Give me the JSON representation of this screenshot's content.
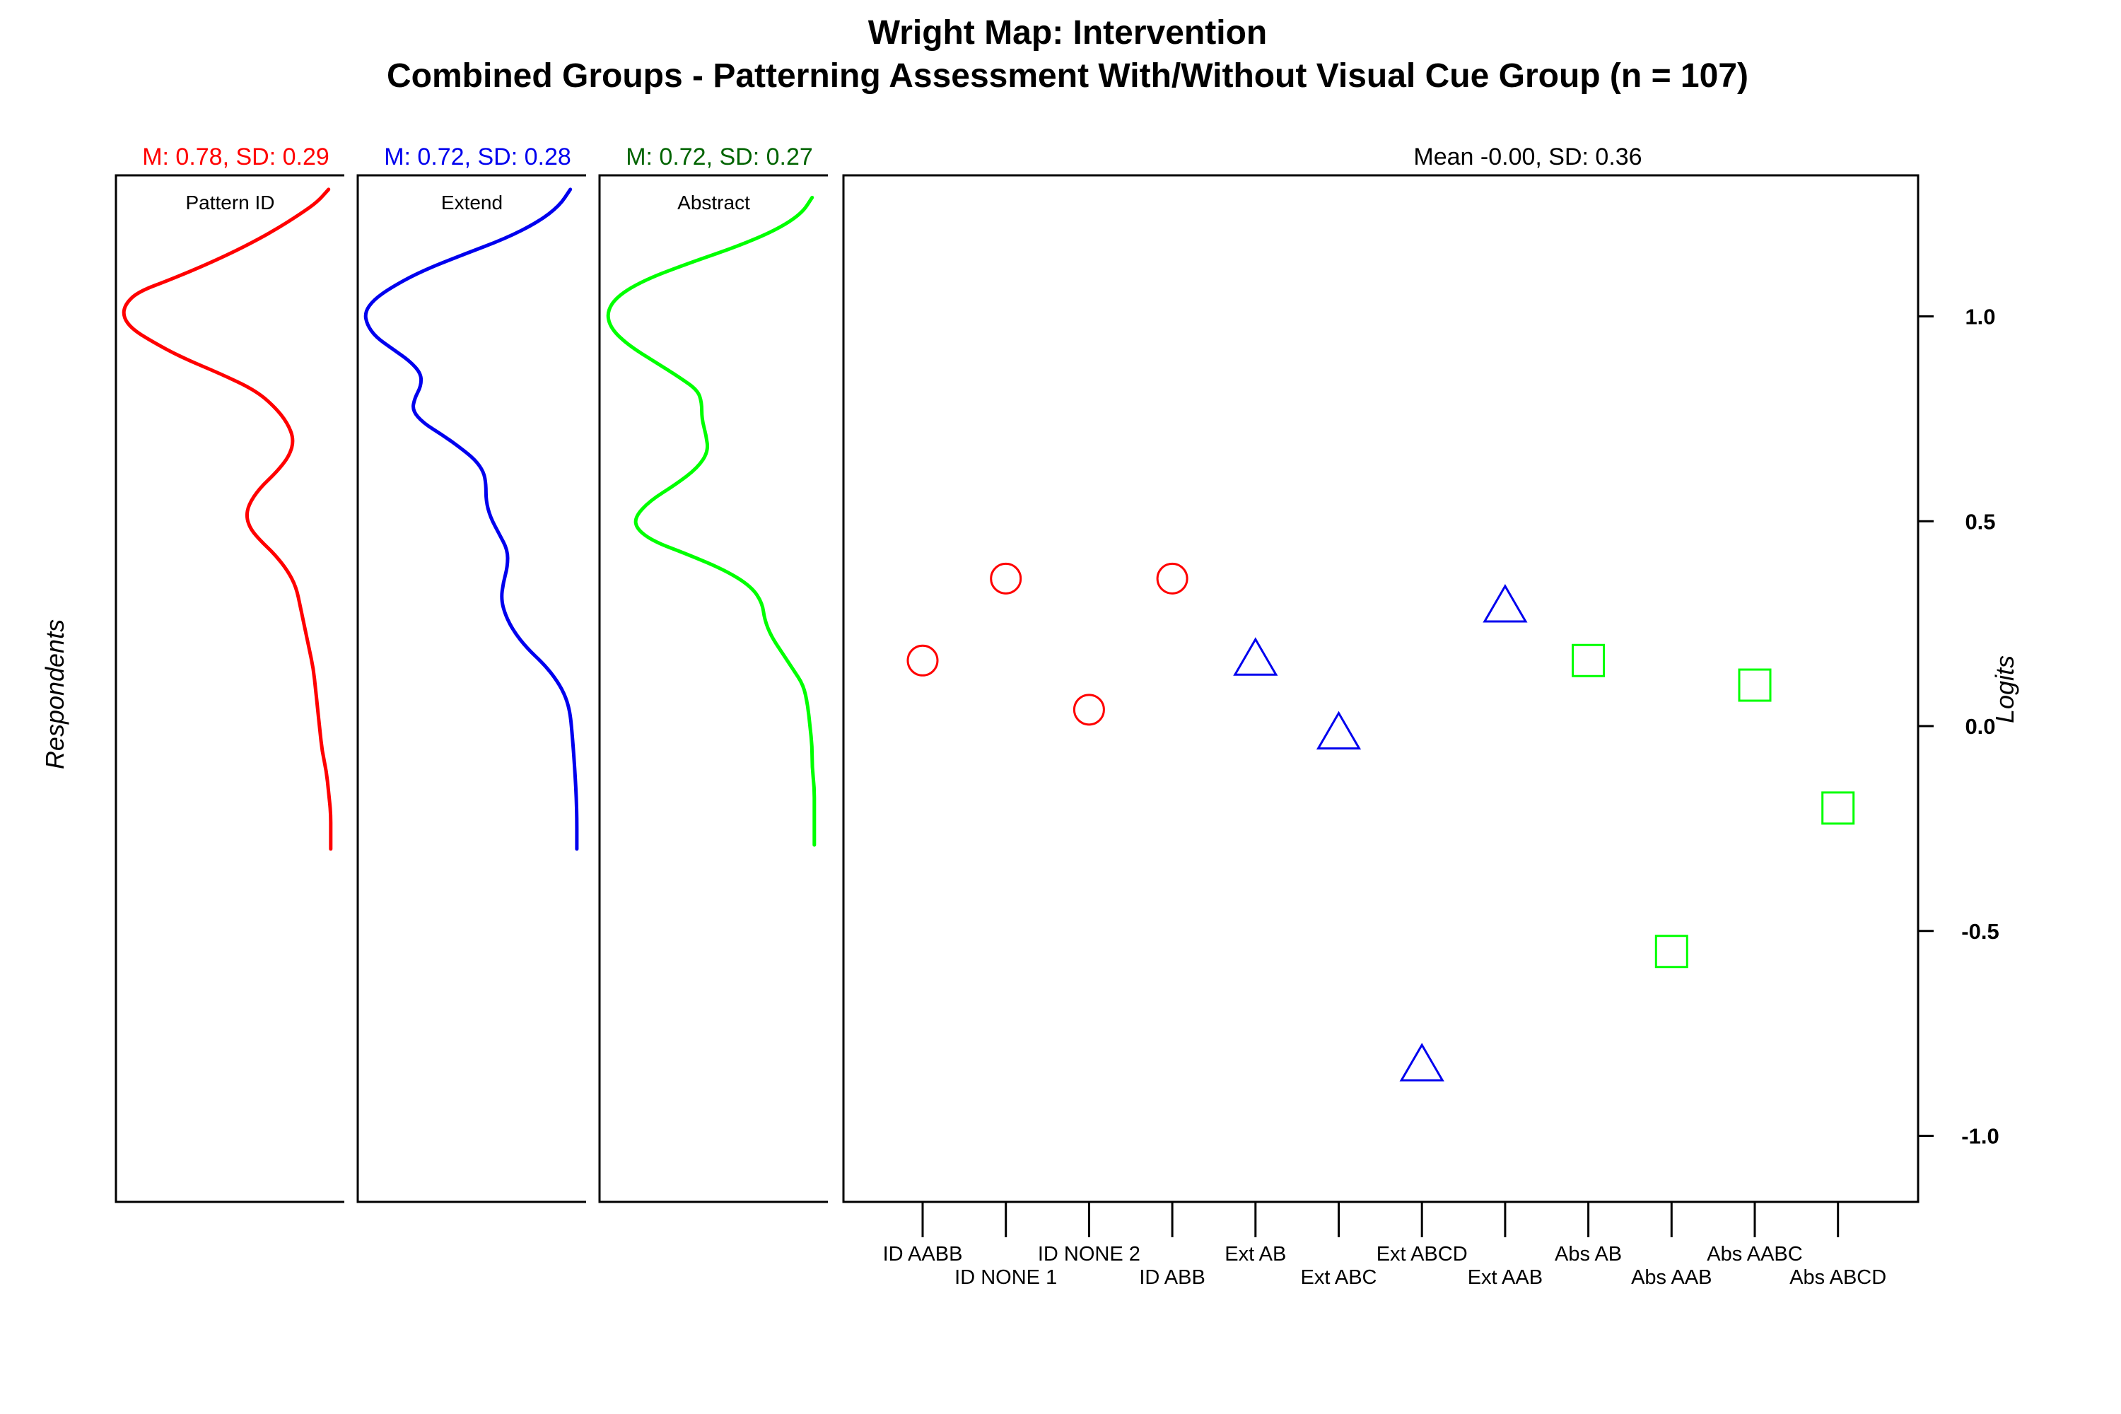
{
  "chart_data": {
    "type": "scatter",
    "title": "Wright Map: Intervention",
    "subtitle": "Combined Groups - Patterning Assessment With/Without Visual Cue Group (n = 107)",
    "ylabel": "Logits",
    "respondents_label": "Respondents",
    "ylim": [
      -1.17,
      1.35
    ],
    "yticks": [
      "1.0",
      "0.5",
      "0.0",
      "-0.5",
      "-1.0"
    ],
    "ytick_values": [
      1.0,
      0.5,
      0.0,
      -0.5,
      -1.0
    ],
    "main_stat": "Mean -0.00, SD: 0.36",
    "grid": false,
    "items": [
      {
        "label": "ID AABB",
        "y": 0.16,
        "group": "Pattern ID",
        "marker": "circle",
        "color": "#ff0000"
      },
      {
        "label": "ID NONE 1",
        "y": 0.36,
        "group": "Pattern ID",
        "marker": "circle",
        "color": "#ff0000"
      },
      {
        "label": "ID NONE 2",
        "y": 0.04,
        "group": "Pattern ID",
        "marker": "circle",
        "color": "#ff0000"
      },
      {
        "label": "ID ABB",
        "y": 0.36,
        "group": "Pattern ID",
        "marker": "circle",
        "color": "#ff0000"
      },
      {
        "label": "Ext AB",
        "y": 0.16,
        "group": "Extend",
        "marker": "triangle",
        "color": "#0000ee"
      },
      {
        "label": "Ext ABC",
        "y": -0.02,
        "group": "Extend",
        "marker": "triangle",
        "color": "#0000ee"
      },
      {
        "label": "Ext ABCD",
        "y": -0.83,
        "group": "Extend",
        "marker": "triangle",
        "color": "#0000ee"
      },
      {
        "label": "Ext AAB",
        "y": 0.29,
        "group": "Extend",
        "marker": "triangle",
        "color": "#0000ee"
      },
      {
        "label": "Abs AB",
        "y": 0.16,
        "group": "Abstract",
        "marker": "square",
        "color": "#00ff00"
      },
      {
        "label": "Abs AAB",
        "y": -0.55,
        "group": "Abstract",
        "marker": "square",
        "color": "#00ff00"
      },
      {
        "label": "Abs AABC",
        "y": 0.1,
        "group": "Abstract",
        "marker": "square",
        "color": "#00ff00"
      },
      {
        "label": "Abs ABCD",
        "y": -0.2,
        "group": "Abstract",
        "marker": "square",
        "color": "#00ff00"
      }
    ],
    "panels": [
      {
        "name": "Pattern ID",
        "stat": "M: 0.78, SD: 0.29",
        "stat_color": "#ff0000",
        "line_color": "#ff0000",
        "density": [
          [
            1.31,
            0.05
          ],
          [
            1.28,
            0.1
          ],
          [
            1.25,
            0.18
          ],
          [
            1.21,
            0.3
          ],
          [
            1.17,
            0.44
          ],
          [
            1.13,
            0.6
          ],
          [
            1.09,
            0.78
          ],
          [
            1.06,
            0.93
          ],
          [
            1.03,
            0.99
          ],
          [
            1.0,
            1.0
          ],
          [
            0.97,
            0.96
          ],
          [
            0.94,
            0.87
          ],
          [
            0.9,
            0.73
          ],
          [
            0.86,
            0.55
          ],
          [
            0.82,
            0.39
          ],
          [
            0.78,
            0.3
          ],
          [
            0.74,
            0.24
          ],
          [
            0.7,
            0.21
          ],
          [
            0.66,
            0.23
          ],
          [
            0.62,
            0.29
          ],
          [
            0.58,
            0.37
          ],
          [
            0.54,
            0.42
          ],
          [
            0.51,
            0.43
          ],
          [
            0.48,
            0.41
          ],
          [
            0.45,
            0.36
          ],
          [
            0.42,
            0.3
          ],
          [
            0.38,
            0.24
          ],
          [
            0.34,
            0.2
          ],
          [
            0.29,
            0.18
          ],
          [
            0.24,
            0.16
          ],
          [
            0.19,
            0.14
          ],
          [
            0.14,
            0.12
          ],
          [
            0.09,
            0.11
          ],
          [
            0.04,
            0.1
          ],
          [
            -0.01,
            0.09
          ],
          [
            -0.06,
            0.08
          ],
          [
            -0.11,
            0.06
          ],
          [
            -0.16,
            0.05
          ],
          [
            -0.21,
            0.04
          ],
          [
            -0.26,
            0.04
          ],
          [
            -0.3,
            0.04
          ]
        ]
      },
      {
        "name": "Extend",
        "stat": "M: 0.72, SD: 0.28",
        "stat_color": "#0000ee",
        "line_color": "#0000ee",
        "density": [
          [
            1.31,
            0.05
          ],
          [
            1.27,
            0.1
          ],
          [
            1.23,
            0.2
          ],
          [
            1.19,
            0.35
          ],
          [
            1.15,
            0.55
          ],
          [
            1.11,
            0.74
          ],
          [
            1.07,
            0.88
          ],
          [
            1.04,
            0.96
          ],
          [
            1.01,
            1.0
          ],
          [
            0.98,
            0.99
          ],
          [
            0.95,
            0.95
          ],
          [
            0.92,
            0.87
          ],
          [
            0.89,
            0.79
          ],
          [
            0.86,
            0.74
          ],
          [
            0.83,
            0.74
          ],
          [
            0.8,
            0.77
          ],
          [
            0.77,
            0.78
          ],
          [
            0.74,
            0.73
          ],
          [
            0.71,
            0.64
          ],
          [
            0.68,
            0.56
          ],
          [
            0.65,
            0.49
          ],
          [
            0.62,
            0.45
          ],
          [
            0.59,
            0.44
          ],
          [
            0.55,
            0.44
          ],
          [
            0.51,
            0.42
          ],
          [
            0.47,
            0.38
          ],
          [
            0.43,
            0.34
          ],
          [
            0.39,
            0.34
          ],
          [
            0.35,
            0.36
          ],
          [
            0.31,
            0.37
          ],
          [
            0.27,
            0.35
          ],
          [
            0.23,
            0.31
          ],
          [
            0.19,
            0.25
          ],
          [
            0.15,
            0.17
          ],
          [
            0.11,
            0.11
          ],
          [
            0.07,
            0.07
          ],
          [
            0.03,
            0.05
          ],
          [
            -0.03,
            0.04
          ],
          [
            -0.1,
            0.03
          ],
          [
            -0.2,
            0.02
          ],
          [
            -0.3,
            0.02
          ]
        ]
      },
      {
        "name": "Abstract",
        "stat": "M: 0.72, SD: 0.27",
        "stat_color": "#006400",
        "line_color": "#00ff00",
        "density": [
          [
            1.29,
            0.05
          ],
          [
            1.25,
            0.1
          ],
          [
            1.21,
            0.22
          ],
          [
            1.17,
            0.4
          ],
          [
            1.13,
            0.62
          ],
          [
            1.09,
            0.82
          ],
          [
            1.05,
            0.95
          ],
          [
            1.01,
            1.0
          ],
          [
            0.97,
            0.98
          ],
          [
            0.93,
            0.9
          ],
          [
            0.89,
            0.78
          ],
          [
            0.85,
            0.66
          ],
          [
            0.82,
            0.58
          ],
          [
            0.79,
            0.56
          ],
          [
            0.75,
            0.56
          ],
          [
            0.71,
            0.54
          ],
          [
            0.67,
            0.53
          ],
          [
            0.63,
            0.58
          ],
          [
            0.59,
            0.68
          ],
          [
            0.55,
            0.8
          ],
          [
            0.51,
            0.87
          ],
          [
            0.48,
            0.86
          ],
          [
            0.45,
            0.78
          ],
          [
            0.42,
            0.63
          ],
          [
            0.38,
            0.45
          ],
          [
            0.34,
            0.33
          ],
          [
            0.3,
            0.28
          ],
          [
            0.26,
            0.27
          ],
          [
            0.22,
            0.24
          ],
          [
            0.18,
            0.19
          ],
          [
            0.14,
            0.14
          ],
          [
            0.1,
            0.09
          ],
          [
            0.05,
            0.07
          ],
          [
            0.0,
            0.06
          ],
          [
            -0.05,
            0.05
          ],
          [
            -0.1,
            0.05
          ],
          [
            -0.15,
            0.04
          ],
          [
            -0.2,
            0.04
          ],
          [
            -0.25,
            0.04
          ],
          [
            -0.29,
            0.04
          ]
        ]
      }
    ]
  }
}
